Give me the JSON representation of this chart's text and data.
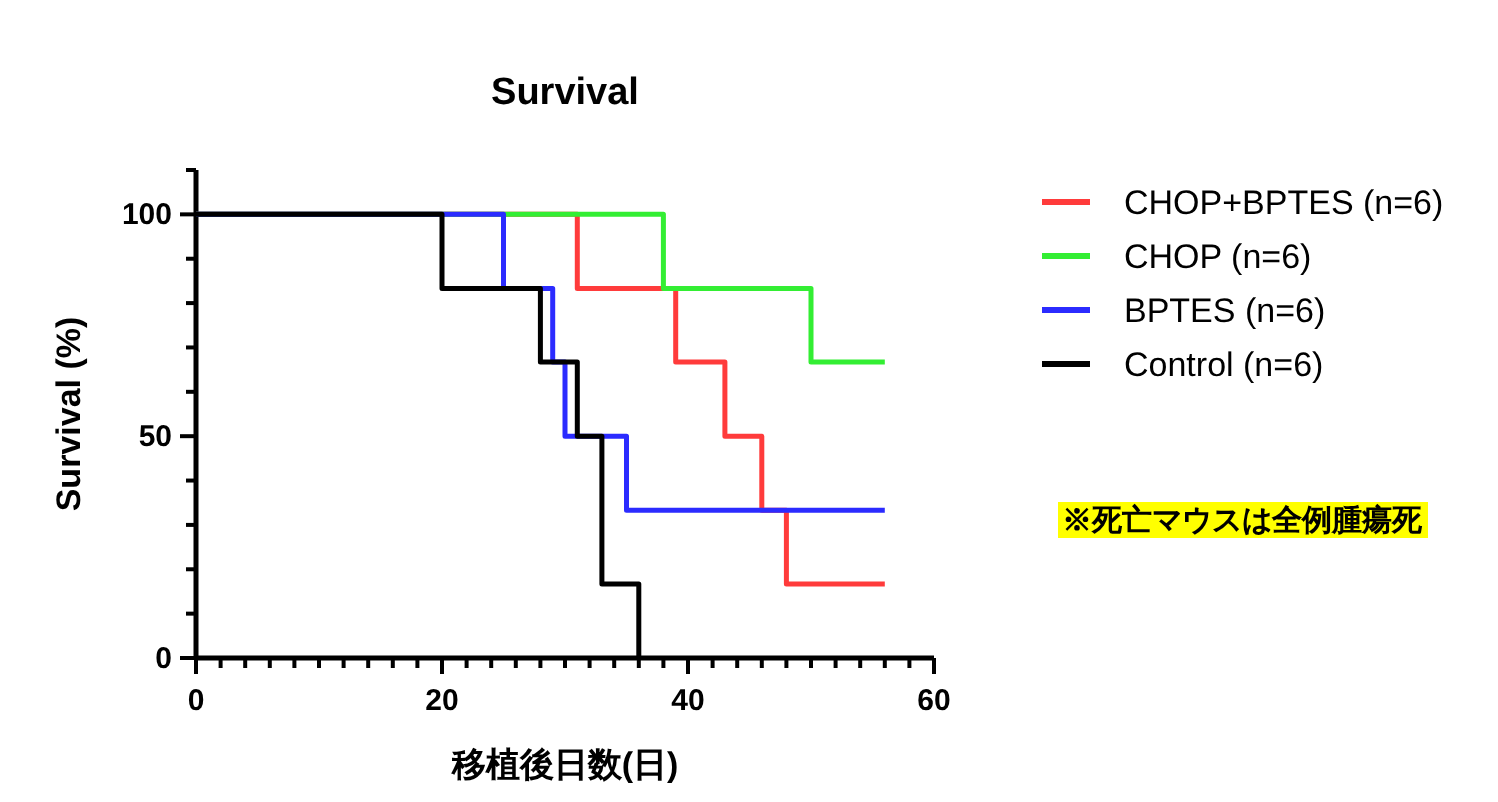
{
  "chart_data": {
    "type": "step",
    "title": "Survival",
    "xlabel": "移植後日数(日)",
    "ylabel": "Survival (%)",
    "xlim": [
      0,
      60
    ],
    "ylim": [
      0,
      110
    ],
    "xticks": [
      0,
      {
        "value": 2,
        "label": null
      },
      {
        "value": 4,
        "label": null
      },
      {
        "value": 6,
        "label": null
      },
      {
        "value": 8,
        "label": null
      },
      {
        "value": 10,
        "label": null
      },
      {
        "value": 12,
        "label": null
      },
      {
        "value": 14,
        "label": null
      },
      {
        "value": 16,
        "label": null
      },
      {
        "value": 18,
        "label": null
      },
      20,
      {
        "value": 22,
        "label": null
      },
      {
        "value": 24,
        "label": null
      },
      {
        "value": 26,
        "label": null
      },
      {
        "value": 28,
        "label": null
      },
      {
        "value": 30,
        "label": null
      },
      {
        "value": 32,
        "label": null
      },
      {
        "value": 34,
        "label": null
      },
      {
        "value": 36,
        "label": null
      },
      {
        "value": 38,
        "label": null
      },
      40,
      {
        "value": 42,
        "label": null
      },
      {
        "value": 44,
        "label": null
      },
      {
        "value": 46,
        "label": null
      },
      {
        "value": 48,
        "label": null
      },
      {
        "value": 50,
        "label": null
      },
      {
        "value": 52,
        "label": null
      },
      {
        "value": 54,
        "label": null
      },
      {
        "value": 56,
        "label": null
      },
      {
        "value": 58,
        "label": null
      },
      60
    ],
    "yticks": [
      0,
      {
        "value": 10,
        "label": null
      },
      {
        "value": 20,
        "label": null
      },
      {
        "value": 30,
        "label": null
      },
      {
        "value": 40,
        "label": null
      },
      50,
      {
        "value": 60,
        "label": null
      },
      {
        "value": 70,
        "label": null
      },
      {
        "value": 80,
        "label": null
      },
      {
        "value": 90,
        "label": null
      },
      100,
      {
        "value": 110,
        "label": null
      }
    ],
    "legend": "right",
    "grid": false,
    "series": [
      {
        "name": "CHOP+BPTES (n=6)",
        "color": "#ff3b3b",
        "x": [
          0,
          31,
          39,
          43,
          46,
          48,
          56
        ],
        "values": [
          100,
          83.3,
          66.7,
          50,
          33.3,
          16.7,
          16.7
        ]
      },
      {
        "name": "CHOP (n=6)",
        "color": "#33ee33",
        "x": [
          0,
          38,
          50,
          56
        ],
        "values": [
          100,
          83.3,
          66.7,
          66.7
        ]
      },
      {
        "name": "BPTES (n=6)",
        "color": "#2b2bff",
        "x": [
          0,
          25,
          29,
          30,
          35,
          56
        ],
        "values": [
          100,
          83.3,
          66.7,
          50,
          33.3,
          33.3
        ]
      },
      {
        "name": "Control (n=6)",
        "color": "#000000",
        "x": [
          0,
          20,
          28,
          31,
          33,
          36
        ],
        "values": [
          100,
          83.3,
          66.7,
          50,
          16.7,
          0
        ]
      }
    ],
    "annotations": [
      "※死亡マウスは全例腫瘍死"
    ]
  }
}
